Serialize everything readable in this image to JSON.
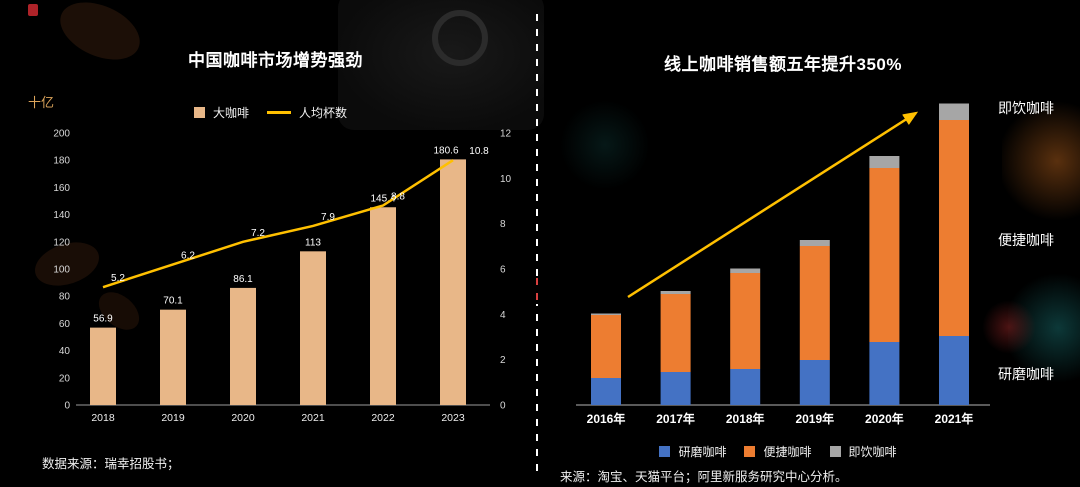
{
  "slide": {
    "background_color": "#000000",
    "divider_color": "#ffffff",
    "accent_red": "#c1272d"
  },
  "chart_data": [
    {
      "id": "china-coffee-market",
      "type": "bar",
      "title": "中国咖啡市场增势强劲",
      "unit_label": "十亿",
      "categories": [
        "2018",
        "2019",
        "2020",
        "2021",
        "2022",
        "2023"
      ],
      "series": [
        {
          "name": "大咖啡",
          "kind": "bar",
          "axis": "left",
          "color": "#e8b788",
          "values": [
            56.9,
            70.1,
            86.1,
            113,
            145.4,
            180.6
          ]
        },
        {
          "name": "人均杯数",
          "kind": "line",
          "axis": "right",
          "color": "#ffc000",
          "values": [
            5.2,
            6.2,
            7.2,
            7.9,
            8.8,
            10.8
          ]
        }
      ],
      "left_axis": {
        "min": 0,
        "max": 200,
        "ticks": [
          0,
          20,
          40,
          60,
          80,
          100,
          120,
          140,
          160,
          180,
          200
        ]
      },
      "right_axis": {
        "min": 0,
        "max": 12,
        "ticks": [
          0,
          2,
          4,
          6,
          8,
          10,
          12
        ]
      },
      "legend_position": "top",
      "grid": false,
      "source": "数据来源：瑞幸招股书；"
    },
    {
      "id": "online-coffee-sales",
      "type": "bar",
      "subtype": "stacked",
      "title": "线上咖啡销售额五年提升350%",
      "categories": [
        "2016年",
        "2017年",
        "2018年",
        "2019年",
        "2020年",
        "2021年"
      ],
      "series": [
        {
          "name": "研磨咖啡",
          "color": "#4472c4",
          "values": [
            9,
            11,
            12,
            15,
            21,
            23
          ]
        },
        {
          "name": "便捷咖啡",
          "color": "#ed7d31",
          "values": [
            21,
            26,
            32,
            38,
            58,
            72
          ]
        },
        {
          "name": "即饮咖啡",
          "color": "#a6a6a6",
          "values": [
            0.5,
            1,
            1.5,
            2,
            4,
            5.5
          ]
        }
      ],
      "side_labels": [
        "即饮咖啡",
        "便捷咖啡",
        "研磨咖啡"
      ],
      "trend_arrow": {
        "color": "#ffc000"
      },
      "legend_position": "bottom",
      "grid": false,
      "source": "来源：淘宝、天猫平台；阿里新服务研究中心分析。"
    }
  ]
}
